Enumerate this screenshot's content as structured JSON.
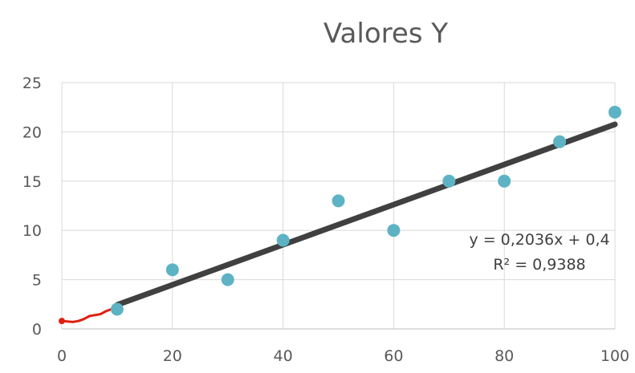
{
  "chart_data": {
    "type": "scatter",
    "title": "Valores Y",
    "xlabel": "",
    "ylabel": "",
    "xlim": [
      0,
      100
    ],
    "ylim": [
      0,
      25
    ],
    "x_ticks": [
      "0",
      "20",
      "40",
      "60",
      "80",
      "100"
    ],
    "y_ticks": [
      "0",
      "5",
      "10",
      "15",
      "20",
      "25"
    ],
    "grid": true,
    "series": [
      {
        "x": [
          10,
          20,
          30,
          40,
          50,
          60,
          70,
          80,
          90,
          100
        ],
        "y": [
          2,
          6,
          5,
          9,
          13,
          10,
          15,
          15,
          19,
          22
        ],
        "color": "#5db3c4"
      }
    ],
    "trendline": {
      "slope": 0.2036,
      "intercept": 0.4,
      "x_range": [
        10,
        100
      ],
      "color": "#404040",
      "equation": "y = 0,2036x + 0,4",
      "r_squared": "R² = 0,9388"
    },
    "annotation_stroke": {
      "color": "#e02010",
      "x": [
        0,
        1,
        2,
        3,
        4,
        5,
        6,
        7,
        8,
        9,
        10
      ],
      "y": [
        0.8,
        0.75,
        0.7,
        0.8,
        1.0,
        1.3,
        1.4,
        1.5,
        1.8,
        2.0,
        2.2
      ]
    }
  }
}
